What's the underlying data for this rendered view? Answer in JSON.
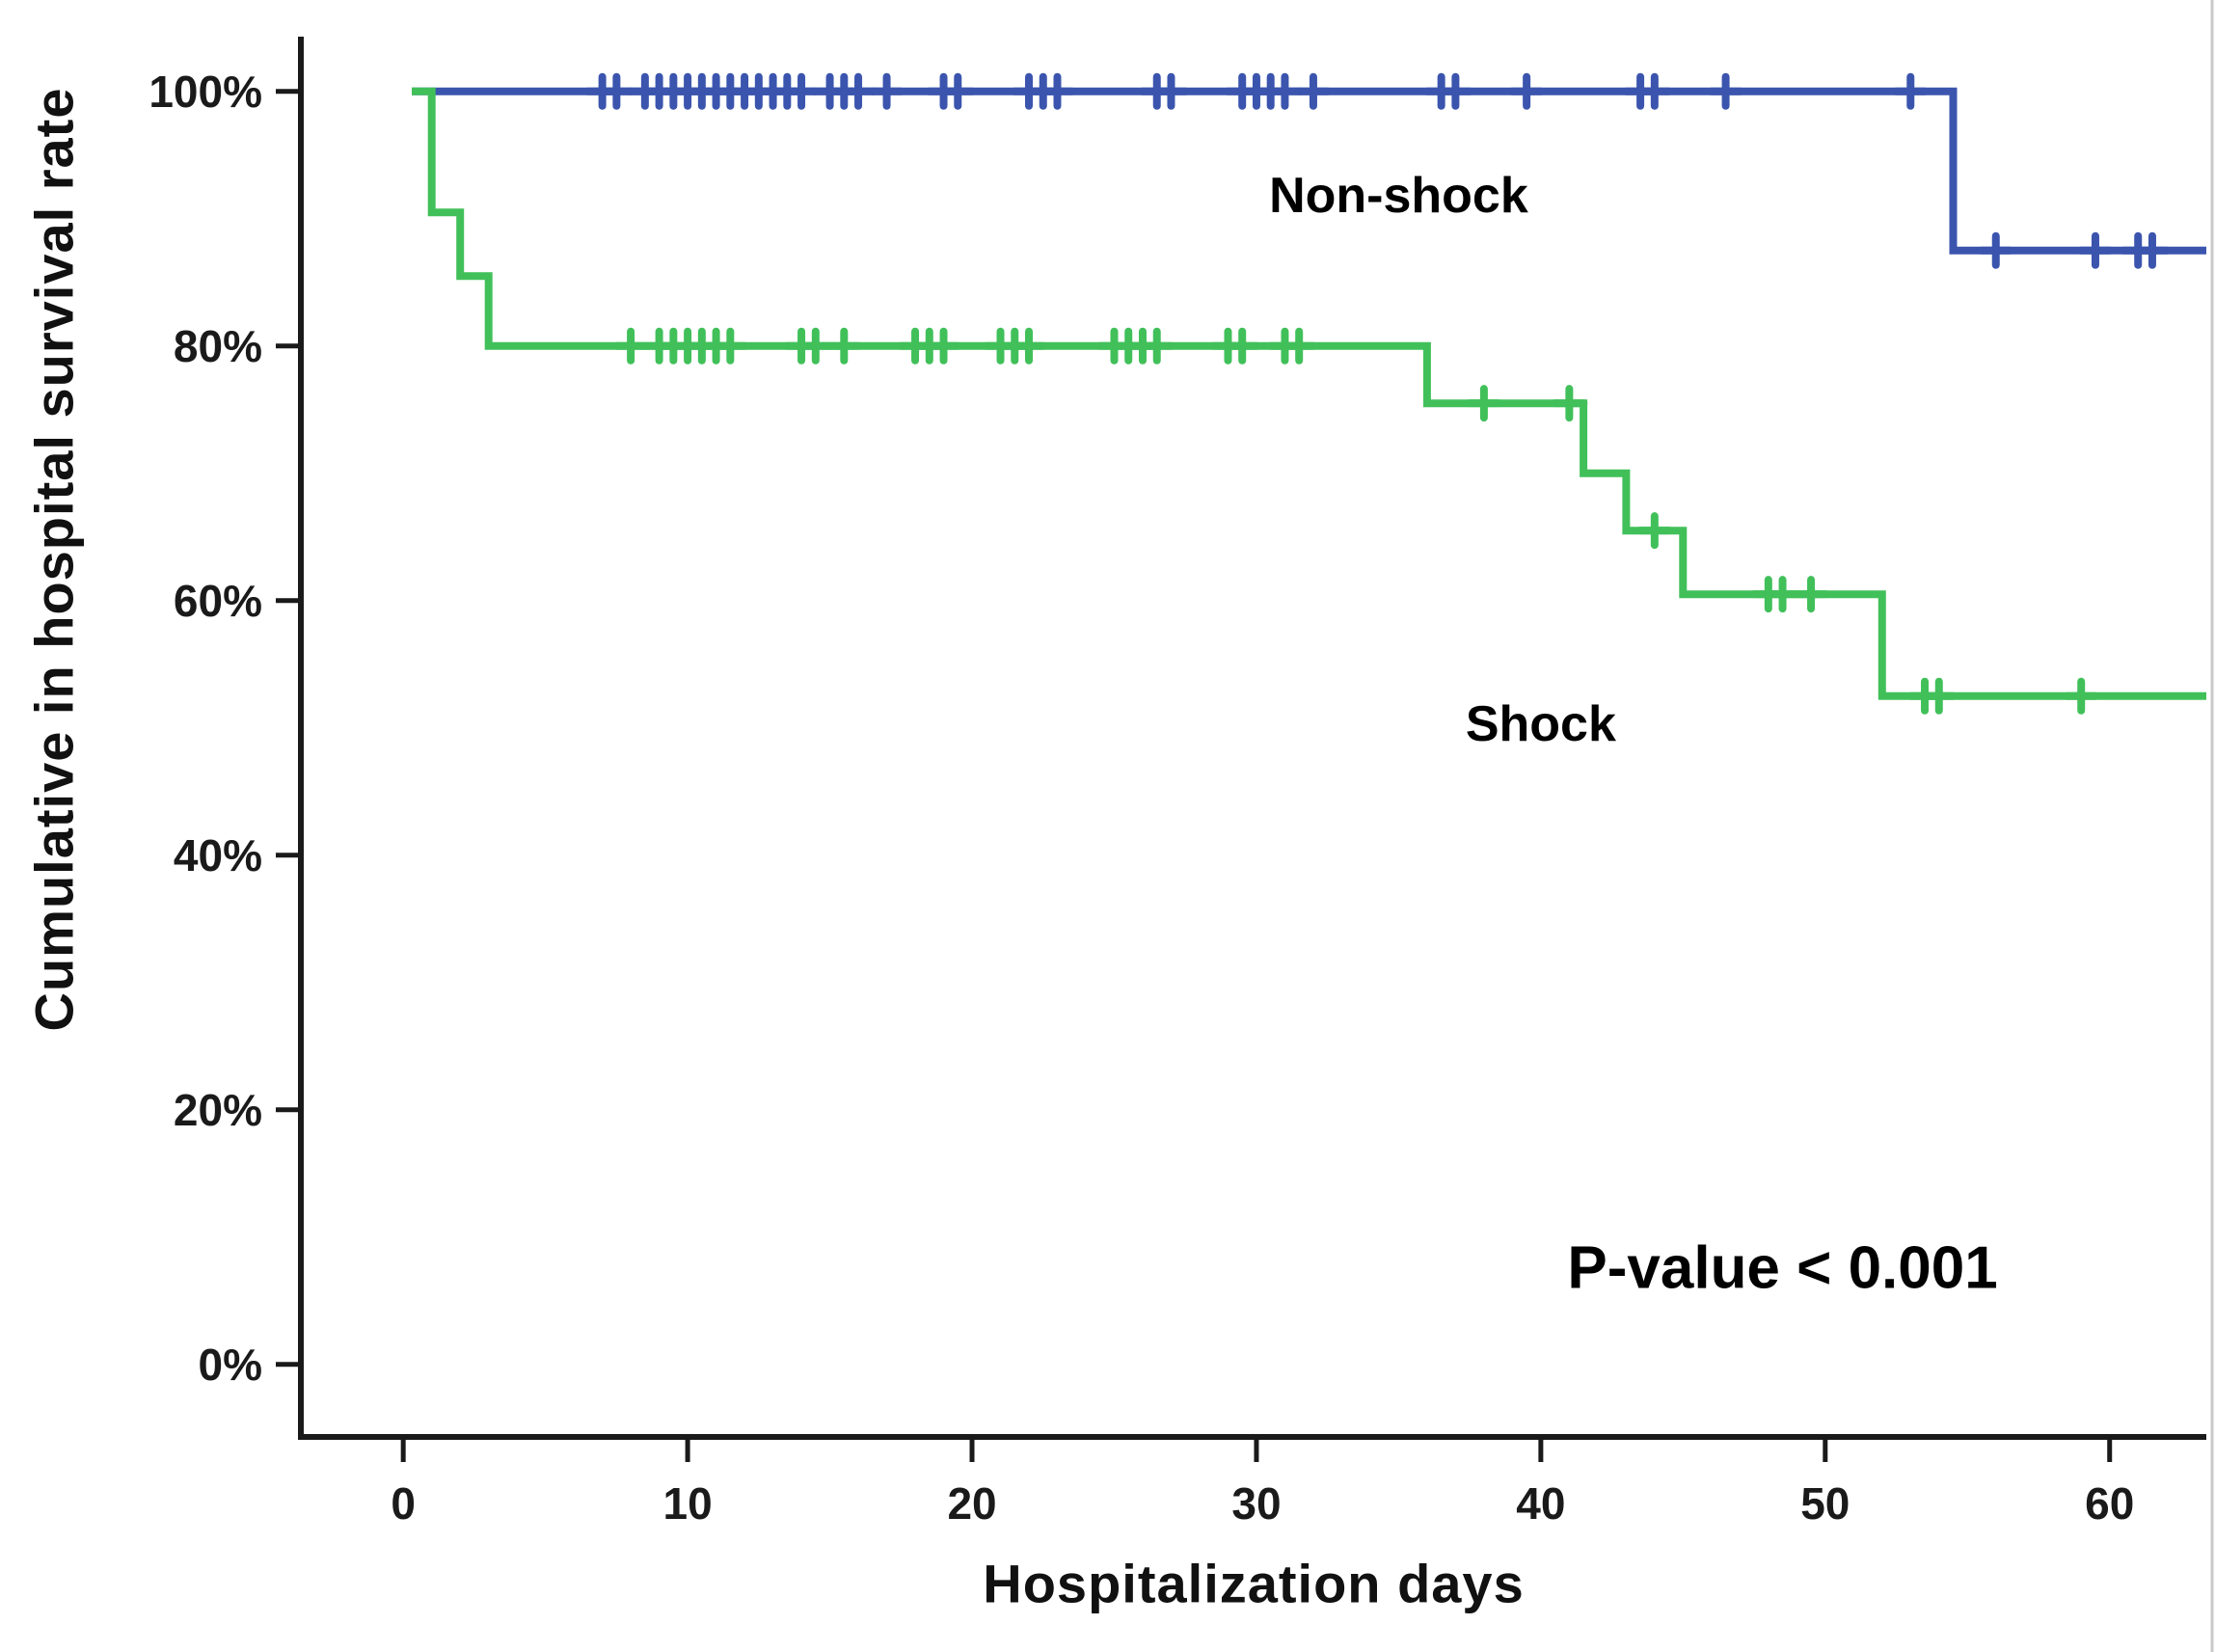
{
  "figure": {
    "right_border_color": "#c9c9c9"
  },
  "chart_data": {
    "type": "line",
    "subtype": "kaplan-meier-step-survival",
    "title": "",
    "xlabel": "Hospitalization days",
    "ylabel": "Cumulative in hospital survival rate",
    "xlim": [
      -3.6,
      63.4
    ],
    "ylim": [
      -0.057,
      1.043
    ],
    "x_ticks": [
      0,
      10,
      20,
      30,
      40,
      50,
      60
    ],
    "x_tick_labels": [
      "0",
      "10",
      "20",
      "30",
      "40",
      "50",
      "60"
    ],
    "y_ticks": [
      0,
      0.2,
      0.4,
      0.6,
      0.8,
      1.0
    ],
    "y_tick_labels": [
      "0%",
      "20%",
      "40%",
      "60%",
      "80%",
      "100%"
    ],
    "grid": false,
    "legend_position": "inline-annotations",
    "axis_color": "#1a1a1a",
    "annotations": [
      {
        "id": "non-shock-label",
        "text": "Non-shock",
        "x": 35,
        "y": 0.905,
        "size": 52,
        "color": "#000000"
      },
      {
        "id": "shock-label",
        "text": "Shock",
        "x": 40,
        "y": 0.49,
        "size": 52,
        "color": "#000000"
      },
      {
        "id": "p-value-label",
        "text": "P-value < 0.001",
        "x": 48.5,
        "y": 0.06,
        "size": 62,
        "color": "#1a1a1a"
      }
    ],
    "series": [
      {
        "name": "Non-shock",
        "color": "#3b55ae",
        "line_width": 8,
        "steps": [
          [
            0.3,
            1.0
          ],
          [
            54.5,
            1.0
          ],
          [
            54.5,
            0.875
          ],
          [
            63.4,
            0.875
          ]
        ],
        "censor_marks": [
          [
            7,
            1.0
          ],
          [
            7.5,
            1.0
          ],
          [
            8.5,
            1.0
          ],
          [
            9,
            1.0
          ],
          [
            9.5,
            1.0
          ],
          [
            10,
            1.0
          ],
          [
            10.5,
            1.0
          ],
          [
            11,
            1.0
          ],
          [
            11.5,
            1.0
          ],
          [
            12,
            1.0
          ],
          [
            12.5,
            1.0
          ],
          [
            13,
            1.0
          ],
          [
            13.5,
            1.0
          ],
          [
            14,
            1.0
          ],
          [
            15,
            1.0
          ],
          [
            15.5,
            1.0
          ],
          [
            16,
            1.0
          ],
          [
            17,
            1.0
          ],
          [
            19,
            1.0
          ],
          [
            19.5,
            1.0
          ],
          [
            22,
            1.0
          ],
          [
            22.5,
            1.0
          ],
          [
            23,
            1.0
          ],
          [
            26.5,
            1.0
          ],
          [
            27,
            1.0
          ],
          [
            29.5,
            1.0
          ],
          [
            30,
            1.0
          ],
          [
            30.5,
            1.0
          ],
          [
            31,
            1.0
          ],
          [
            32,
            1.0
          ],
          [
            36.5,
            1.0
          ],
          [
            37,
            1.0
          ],
          [
            39.5,
            1.0
          ],
          [
            43.5,
            1.0
          ],
          [
            44,
            1.0
          ],
          [
            46.5,
            1.0
          ],
          [
            53,
            1.0
          ],
          [
            56,
            0.875
          ],
          [
            59.5,
            0.875
          ],
          [
            61,
            0.875
          ],
          [
            61.5,
            0.875
          ]
        ]
      },
      {
        "name": "Shock",
        "color": "#41c05a",
        "line_width": 8,
        "steps": [
          [
            0.3,
            1.0
          ],
          [
            1,
            1.0
          ],
          [
            1,
            0.905
          ],
          [
            2,
            0.905
          ],
          [
            2,
            0.855
          ],
          [
            3,
            0.855
          ],
          [
            3,
            0.8
          ],
          [
            36,
            0.8
          ],
          [
            36,
            0.755
          ],
          [
            41.5,
            0.755
          ],
          [
            41.5,
            0.7
          ],
          [
            43,
            0.7
          ],
          [
            43,
            0.655
          ],
          [
            45,
            0.655
          ],
          [
            45,
            0.605
          ],
          [
            52,
            0.605
          ],
          [
            52,
            0.525
          ],
          [
            63.4,
            0.525
          ]
        ],
        "censor_marks": [
          [
            8,
            0.8
          ],
          [
            9,
            0.8
          ],
          [
            9.5,
            0.8
          ],
          [
            10,
            0.8
          ],
          [
            10.5,
            0.8
          ],
          [
            11,
            0.8
          ],
          [
            11.5,
            0.8
          ],
          [
            14,
            0.8
          ],
          [
            14.5,
            0.8
          ],
          [
            15.5,
            0.8
          ],
          [
            18,
            0.8
          ],
          [
            18.5,
            0.8
          ],
          [
            19,
            0.8
          ],
          [
            21,
            0.8
          ],
          [
            21.5,
            0.8
          ],
          [
            22,
            0.8
          ],
          [
            25,
            0.8
          ],
          [
            25.5,
            0.8
          ],
          [
            26,
            0.8
          ],
          [
            26.5,
            0.8
          ],
          [
            29,
            0.8
          ],
          [
            29.5,
            0.8
          ],
          [
            31,
            0.8
          ],
          [
            31.5,
            0.8
          ],
          [
            38,
            0.755
          ],
          [
            41,
            0.755
          ],
          [
            44,
            0.655
          ],
          [
            48,
            0.605
          ],
          [
            48.5,
            0.605
          ],
          [
            49.5,
            0.605
          ],
          [
            53.5,
            0.525
          ],
          [
            54,
            0.525
          ],
          [
            59,
            0.525
          ]
        ]
      }
    ]
  }
}
